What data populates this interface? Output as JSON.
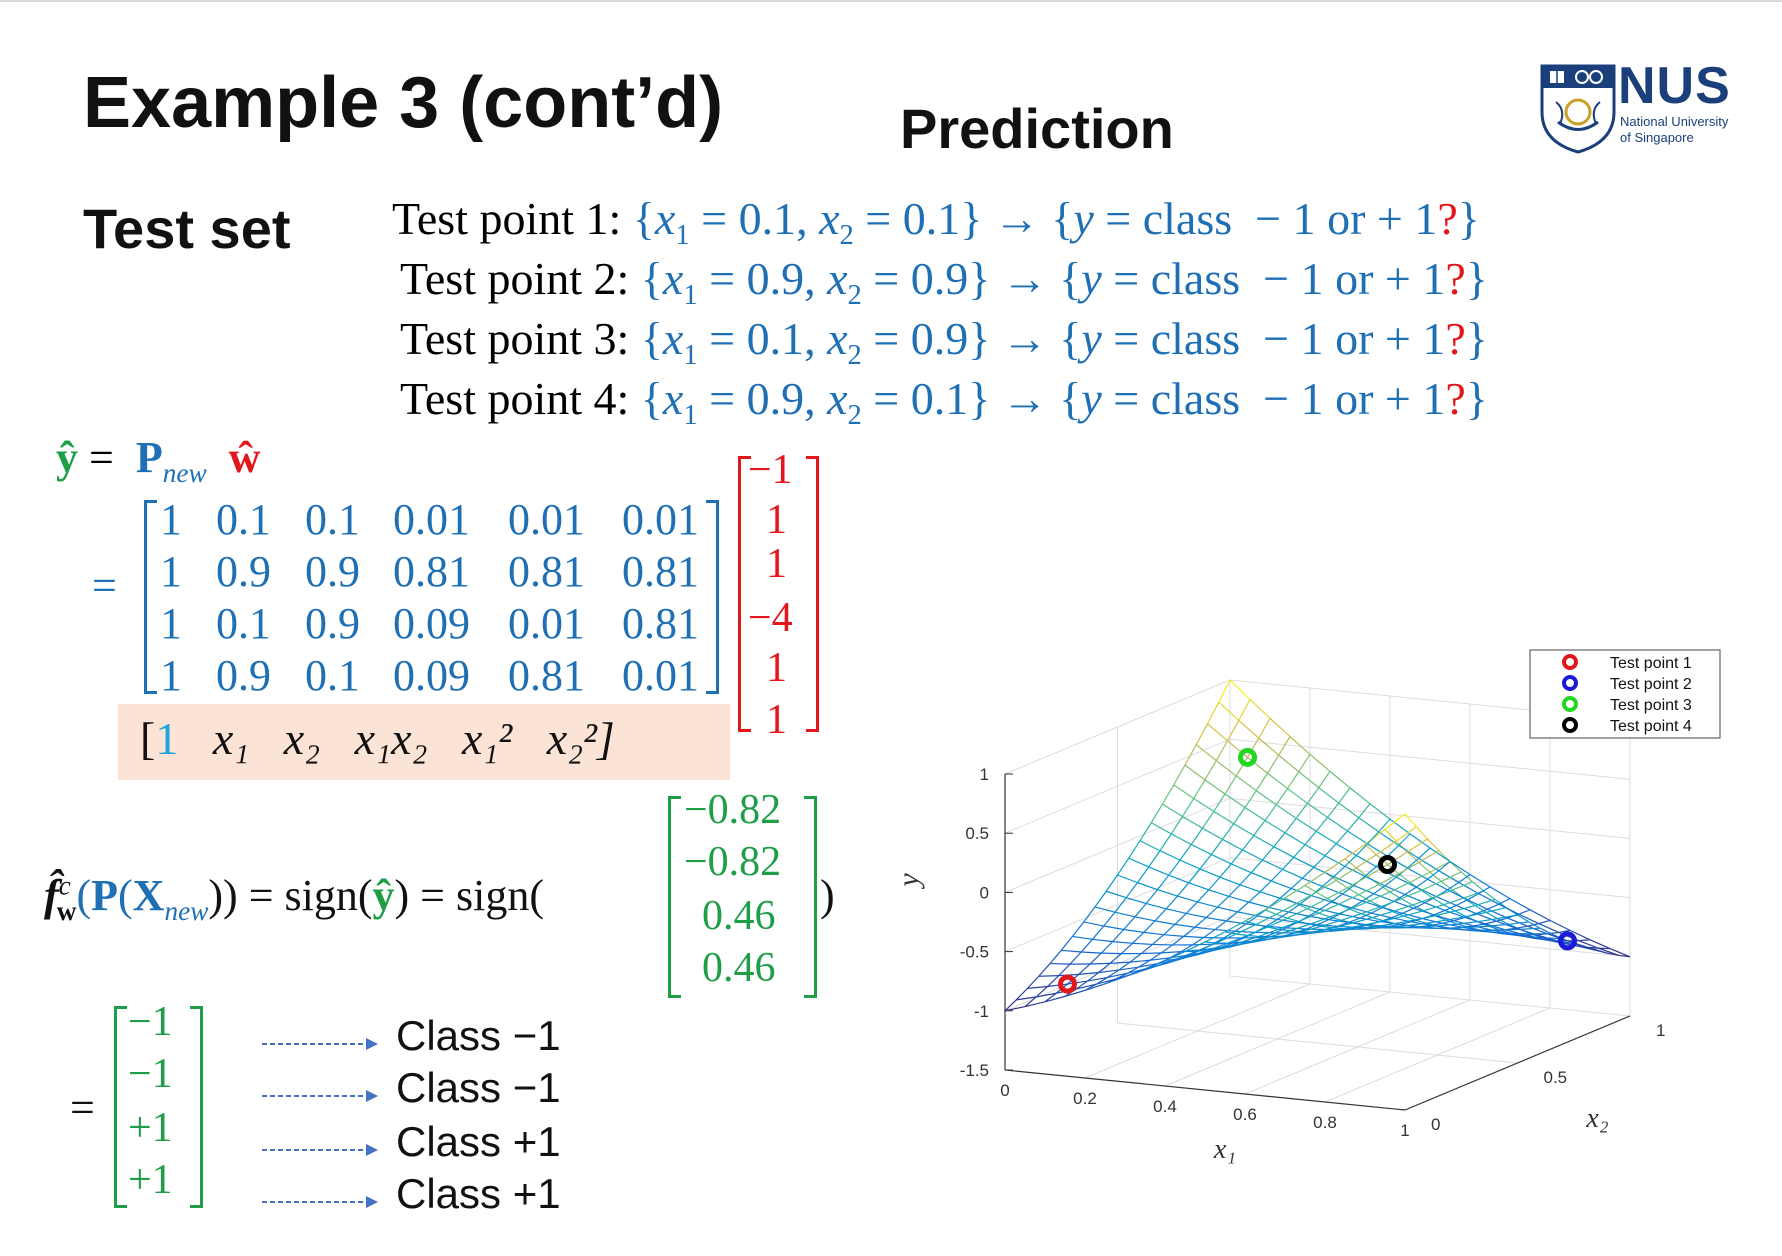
{
  "title": "Example 3 (cont’d)",
  "subtitle": "Prediction",
  "logo": {
    "text": "NUS",
    "line1": "National University",
    "line2": "of Singapore",
    "color": "#1a3f7a"
  },
  "test_set_label": "Test set",
  "test_points": [
    {
      "label": "Test point 1:",
      "x1": "0.1",
      "x2": "0.1"
    },
    {
      "label": "Test point 2:",
      "x1": "0.9",
      "x2": "0.9"
    },
    {
      "label": "Test point 3:",
      "x1": "0.1",
      "x2": "0.9"
    },
    {
      "label": "Test point 4:",
      "x1": "0.9",
      "x2": "0.1"
    }
  ],
  "test_point_suffix": {
    "y": "y",
    "eq": " = class ",
    "minus1": "− 1 or + 1",
    "q": "?"
  },
  "equation": {
    "yhat": "ŷ",
    "eq": "=",
    "P": "P",
    "new": "new",
    "w": "ŵ"
  },
  "P_matrix": [
    [
      "1",
      "0.1",
      "0.1",
      "0.01",
      "0.01",
      "0.01"
    ],
    [
      "1",
      "0.9",
      "0.9",
      "0.81",
      "0.81",
      "0.81"
    ],
    [
      "1",
      "0.1",
      "0.9",
      "0.09",
      "0.01",
      "0.81"
    ],
    [
      "1",
      "0.9",
      "0.1",
      "0.09",
      "0.81",
      "0.01"
    ]
  ],
  "w_vector": [
    "−1",
    "1",
    "1",
    "−4",
    "1",
    "1"
  ],
  "feature_row": [
    "[",
    "1",
    "x₁",
    "x₂",
    "x₁x₂",
    "x₁²",
    "x₂²]"
  ],
  "yhat_vector": [
    "−0.82",
    "−0.82",
    "0.46",
    "0.46"
  ],
  "sign_eq": {
    "f": "f̂",
    "fsup": "c",
    "fsub": "w",
    "open": "(",
    "P": "P",
    "X": "X",
    "new": "new",
    "close": "))",
    "eq1": " = sign(",
    "yhat": "ŷ",
    "eq2": ") = sign(",
    "end": ")"
  },
  "result_vector": [
    "−1",
    "−1",
    "+1",
    "+1"
  ],
  "classes": [
    "Class −1",
    "Class −1",
    "Class +1",
    "Class +1"
  ],
  "colors": {
    "blue": "#1f6fb5",
    "red": "#e3161b",
    "green": "#1f9e48",
    "highlight": "#fbe4d5"
  },
  "chart_data": {
    "type": "surface3d",
    "function": "y = -1 + x1 + x2 - 4*x1*x2 + x1^2 + x2^2",
    "xlabel": "x₁",
    "ylabel": "x₂",
    "zlabel": "y",
    "x_ticks": [
      "0",
      "0.2",
      "0.4",
      "0.6",
      "0.8",
      "1"
    ],
    "y_ticks": [
      "0",
      "0.5",
      "1"
    ],
    "z_ticks": [
      "1",
      "0.5",
      "0",
      "-0.5",
      "-1",
      "-1.5"
    ],
    "xlim": [
      0,
      1
    ],
    "ylim": [
      0,
      1
    ],
    "zlim": [
      -1.5,
      1
    ],
    "grid": true,
    "legend_position": "top-right",
    "series": [
      {
        "name": "Test point 1",
        "x1": 0.1,
        "x2": 0.1,
        "y": -0.82,
        "color": "#e3161b"
      },
      {
        "name": "Test point 2",
        "x1": 0.9,
        "x2": 0.9,
        "y": -0.82,
        "color": "#1a1adb"
      },
      {
        "name": "Test point 3",
        "x1": 0.1,
        "x2": 0.9,
        "y": 0.46,
        "color": "#22d622"
      },
      {
        "name": "Test point 4",
        "x1": 0.9,
        "x2": 0.1,
        "y": 0.46,
        "color": "#000000"
      }
    ]
  }
}
